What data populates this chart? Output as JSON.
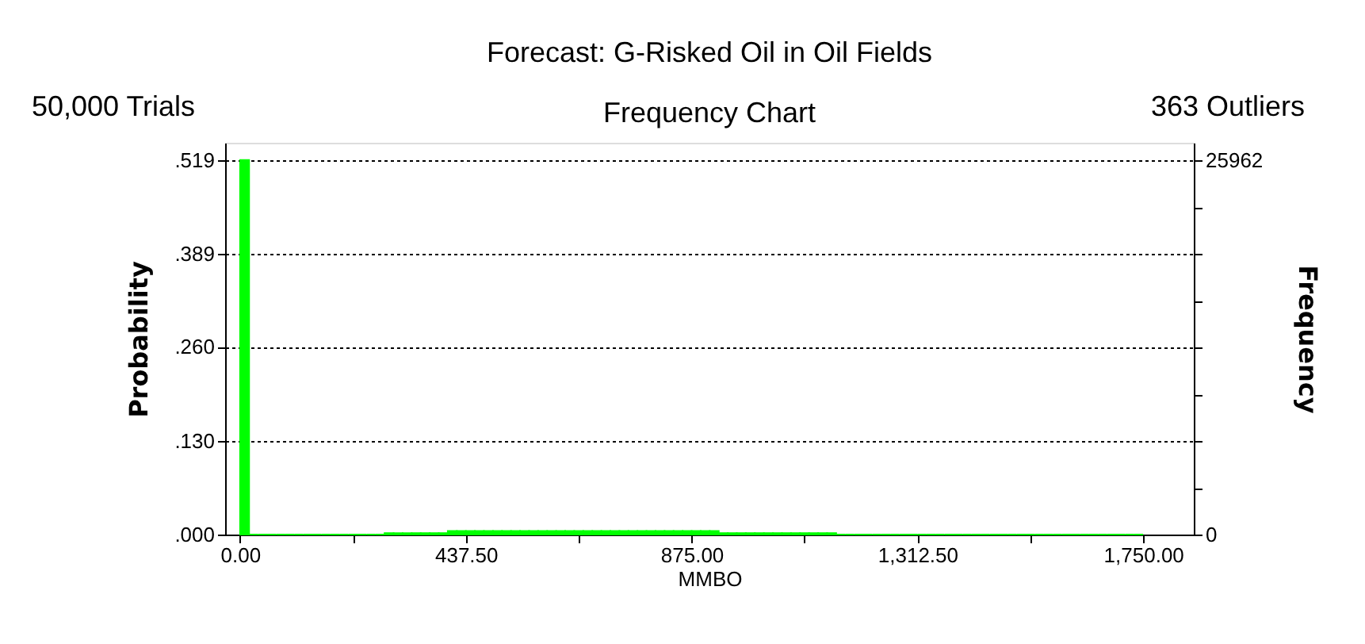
{
  "chart_data": {
    "type": "histogram",
    "title": "Forecast: G-Risked Oil in Oil Fields",
    "subtitle": "Frequency Chart",
    "annotations": [
      "50,000 Trials",
      "363 Outliers"
    ],
    "xlabel": "MMBO",
    "ylabel": "Probability",
    "y2label": "Frequency",
    "color": "#00ff00",
    "bins": [
      0,
      17.5,
      35,
      52.5,
      70,
      87.5,
      105,
      122.5,
      140,
      157.5,
      175,
      192.5,
      210,
      227.5,
      245,
      262.5,
      280,
      297.5,
      315,
      332.5,
      350,
      367.5,
      385,
      402.5,
      420,
      437.5,
      455,
      472.5,
      490,
      507.5,
      525,
      542.5,
      560,
      577.5,
      595,
      612.5,
      630,
      647.5,
      665,
      682.5,
      700,
      717.5,
      735,
      752.5,
      770,
      787.5,
      805,
      822.5,
      840,
      857.5,
      875,
      892.5,
      910,
      927.5,
      945,
      962.5,
      980,
      997.5,
      1015,
      1032.5,
      1050,
      1067.5,
      1085,
      1102.5,
      1120,
      1137.5,
      1155,
      1172.5,
      1190,
      1207.5,
      1225,
      1242.5,
      1260,
      1277.5,
      1295,
      1312.5,
      1330,
      1347.5,
      1365,
      1382.5,
      1400,
      1417.5,
      1435,
      1452.5,
      1470,
      1487.5,
      1505,
      1522.5,
      1540,
      1557.5,
      1575,
      1592.5,
      1610,
      1627.5,
      1645,
      1662.5,
      1680,
      1697.5,
      1715,
      1732.5,
      1750
    ],
    "values": [
      0.519,
      0,
      0,
      0,
      0,
      0,
      0,
      0,
      0,
      0,
      0,
      0,
      0,
      0,
      0,
      0,
      0.002,
      0.002,
      0.002,
      0.002,
      0.002,
      0.002,
      0.002,
      0.005,
      0.005,
      0.005,
      0.005,
      0.005,
      0.005,
      0.005,
      0.005,
      0.005,
      0.005,
      0.005,
      0.005,
      0.005,
      0.005,
      0.005,
      0.005,
      0.005,
      0.005,
      0.005,
      0.005,
      0.005,
      0.005,
      0.005,
      0.005,
      0.005,
      0.005,
      0.005,
      0.005,
      0.005,
      0.005,
      0.002,
      0.002,
      0.002,
      0.002,
      0.002,
      0.002,
      0.002,
      0.002,
      0.002,
      0.002,
      0.002,
      0.002,
      0.002,
      0,
      0,
      0,
      0,
      0,
      0,
      0,
      0,
      0,
      0,
      0,
      0,
      0,
      0,
      0,
      0,
      0,
      0,
      0,
      0,
      0,
      0,
      0,
      0,
      0,
      0,
      0,
      0,
      0,
      0,
      0,
      0,
      0,
      0
    ],
    "xlim": [
      -29,
      1848
    ],
    "xticks": [
      {
        "value": 0,
        "label": "0.00"
      },
      {
        "value": 218.75,
        "label": null
      },
      {
        "value": 437.5,
        "label": "437.50"
      },
      {
        "value": 656.25,
        "label": null
      },
      {
        "value": 875,
        "label": "875.00"
      },
      {
        "value": 1093.75,
        "label": null
      },
      {
        "value": 1312.5,
        "label": "1,312.50"
      },
      {
        "value": 1531.25,
        "label": null
      },
      {
        "value": 1750,
        "label": "1,750.00"
      }
    ],
    "ylim": [
      0,
      0.543
    ],
    "yticks": [
      {
        "value": 0,
        "label": ".000"
      },
      {
        "value": 0.13,
        "label": ".130"
      },
      {
        "value": 0.26,
        "label": ".260"
      },
      {
        "value": 0.389,
        "label": ".389"
      },
      {
        "value": 0.519,
        "label": ".519"
      }
    ],
    "y2lim": [
      0,
      27180
    ],
    "y2ticks": [
      0,
      {
        "value": 3245.25,
        "label": null
      },
      {
        "value": 6490.5,
        "label": null
      },
      {
        "value": 9735.75,
        "label": null
      },
      {
        "value": 12981,
        "label": null
      },
      {
        "value": 16226.25,
        "label": null
      },
      {
        "value": 19471.5,
        "label": null
      },
      {
        "value": 22716.75,
        "label": null
      },
      25962
    ],
    "grid": "y",
    "line_style": "dotted"
  }
}
